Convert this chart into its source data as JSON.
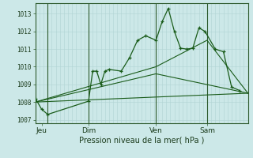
{
  "xlabel": "Pression niveau de la mer( hPa )",
  "bg_color": "#cce8e8",
  "grid_color": "#b0d4d4",
  "line_color": "#1a5c1a",
  "ylim": [
    1006.8,
    1013.6
  ],
  "yticks": [
    1007,
    1008,
    1009,
    1010,
    1011,
    1012,
    1013
  ],
  "xlim": [
    0,
    52
  ],
  "day_labels": [
    "Jeu",
    "Dim",
    "Ven",
    "Sam"
  ],
  "day_positions": [
    1.5,
    13,
    29.5,
    42
  ],
  "vline_x": [
    3,
    13,
    29.5,
    42
  ],
  "series1_x": [
    0,
    1.5,
    3,
    13,
    14,
    15,
    16,
    17,
    18,
    21,
    23,
    25,
    27,
    29.5,
    31,
    32.5,
    34,
    35.5,
    37,
    38.5,
    40,
    41.5,
    44,
    46,
    48,
    50
  ],
  "series1_y": [
    1008.2,
    1007.6,
    1007.3,
    1008.05,
    1009.75,
    1009.75,
    1009.0,
    1009.75,
    1009.85,
    1009.75,
    1010.5,
    1011.5,
    1011.75,
    1011.5,
    1012.55,
    1013.3,
    1012.0,
    1011.05,
    1011.0,
    1011.05,
    1012.2,
    1012.0,
    1011.0,
    1010.85,
    1008.85,
    1008.65
  ],
  "series2_x": [
    0,
    52
  ],
  "series2_y": [
    1008.0,
    1008.5
  ],
  "series3_x": [
    0,
    29.5,
    52
  ],
  "series3_y": [
    1008.0,
    1009.6,
    1008.5
  ],
  "series4_x": [
    0,
    29.5,
    42,
    52
  ],
  "series4_y": [
    1008.0,
    1010.0,
    1011.5,
    1008.5
  ]
}
